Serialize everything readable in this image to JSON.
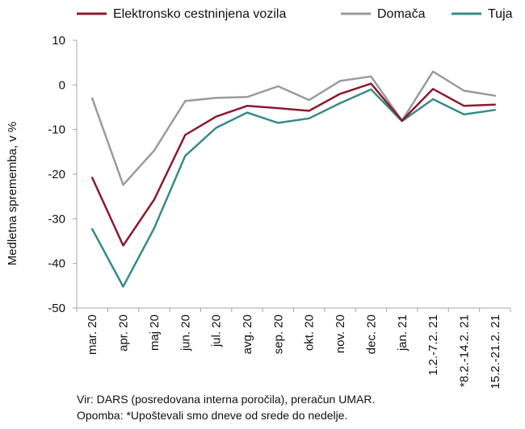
{
  "chart_data": {
    "type": "line",
    "categories": [
      "mar. 20",
      "apr. 20",
      "maj 20",
      "jun. 20",
      "jul. 20",
      "avg. 20",
      "sep. 20",
      "okt. 20",
      "nov. 20",
      "dec. 20",
      "jan. 21",
      "1.2.-7.2. 21",
      "*8.2.-14.2. 21",
      "15.2.-21.2. 21"
    ],
    "ylabel": "Medletna sprememba, v %",
    "ylim": [
      -50,
      10
    ],
    "yticks": [
      10,
      0,
      -10,
      -20,
      -30,
      -40,
      -50
    ],
    "grid": false,
    "legend_position": "top",
    "series": [
      {
        "name": "Elektronsko cestninjena vozila",
        "color": "#8b1a2e",
        "values": [
          -20.8,
          -36.0,
          -25.7,
          -11.2,
          -7.1,
          -4.7,
          -5.2,
          -5.8,
          -2.0,
          0.3,
          -8.0,
          -0.9,
          -4.7,
          -4.4
        ]
      },
      {
        "name": "Domača",
        "color": "#9b9b9b",
        "values": [
          -3.0,
          -22.4,
          -14.7,
          -3.6,
          -2.9,
          -2.7,
          -0.3,
          -3.4,
          0.9,
          1.9,
          -8.0,
          3.0,
          -1.3,
          -2.4
        ]
      },
      {
        "name": "Tuja",
        "color": "#3a8a8a",
        "values": [
          -32.3,
          -45.2,
          -32.1,
          -15.9,
          -9.6,
          -6.2,
          -8.5,
          -7.5,
          -4.1,
          -1.0,
          -8.1,
          -3.2,
          -6.6,
          -5.6
        ]
      }
    ]
  },
  "notes": {
    "source": "Vir: DARS (posredovana interna poročila), preračun UMAR.",
    "remark": "Opomba: *Upoštevali smo dneve od srede do nedelje."
  }
}
